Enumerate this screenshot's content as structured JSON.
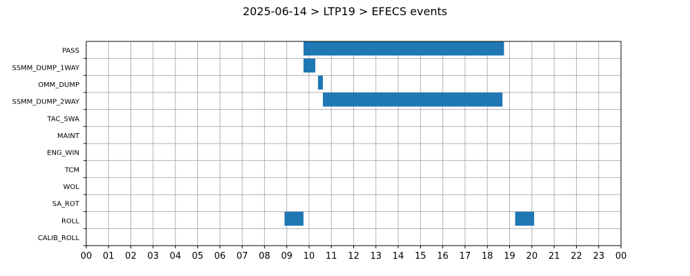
{
  "chart_data": {
    "type": "gantt",
    "title": "2025-06-14 > LTP19 > EFECS events",
    "categories": [
      "PASS",
      "SSMM_DUMP_1WAY",
      "OMM_DUMP",
      "SSMM_DUMP_2WAY",
      "TAC_SWA",
      "MAINT",
      "ENG_WIN",
      "TCM",
      "WOL",
      "SA_ROT",
      "ROLL",
      "CALIB_ROLL"
    ],
    "x_ticks": [
      "00",
      "01",
      "02",
      "03",
      "04",
      "05",
      "06",
      "07",
      "08",
      "09",
      "10",
      "11",
      "12",
      "13",
      "14",
      "15",
      "16",
      "17",
      "18",
      "19",
      "20",
      "21",
      "22",
      "23",
      "00"
    ],
    "xlim": [
      0,
      24
    ],
    "x_unit": "hour of day",
    "grid": true,
    "events": [
      {
        "category": "PASS",
        "start": 9.75,
        "end": 18.75
      },
      {
        "category": "SSMM_DUMP_1WAY",
        "start": 9.75,
        "end": 10.28
      },
      {
        "category": "OMM_DUMP",
        "start": 10.4,
        "end": 10.62
      },
      {
        "category": "SSMM_DUMP_2WAY",
        "start": 10.62,
        "end": 18.68
      },
      {
        "category": "ROLL",
        "start": 8.9,
        "end": 9.75
      },
      {
        "category": "ROLL",
        "start": 19.25,
        "end": 20.1
      }
    ],
    "bar_color": "#1f77b4"
  }
}
